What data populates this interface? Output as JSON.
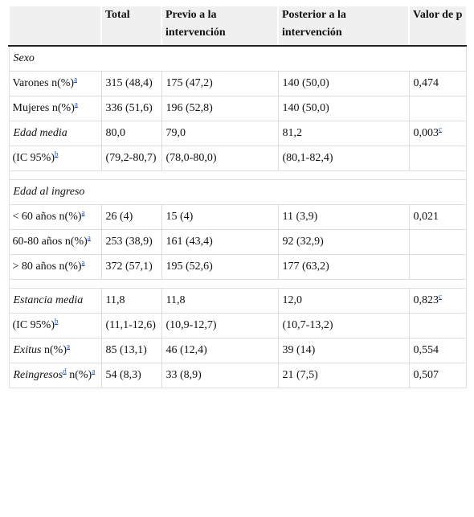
{
  "table": {
    "header": [
      "Total",
      "Previo a la intervención",
      "Posterior a la intervención",
      "Valor de p"
    ],
    "blocks": [
      {
        "title": "Sexo",
        "rows": [
          {
            "label": [
              {
                "text": "Varones n(%)"
              },
              {
                "sup": "a"
              }
            ],
            "values": [
              "315 (48,4)",
              "175 (47,2)",
              "140 (50,0)",
              "0,474"
            ]
          },
          {
            "label": [
              {
                "text": "Mujeres n(%)"
              },
              {
                "sup": "a"
              }
            ],
            "values": [
              "336 (51,6)",
              "196 (52,8)",
              "140 (50,0)"
            ]
          },
          {
            "label": [
              {
                "italic": "Edad media"
              }
            ],
            "values": [
              "80,0",
              "79,0",
              "81,2",
              "0,003"
            ],
            "p_sup": "c"
          },
          {
            "label": [
              {
                "text": "(IC 95%)"
              },
              {
                "sup": "b"
              }
            ],
            "values": [
              "(79,2-80,7)",
              "(78,0-80,0)",
              "(80,1-82,4)"
            ]
          }
        ]
      },
      {
        "title": "Edad al ingreso",
        "rows": [
          {
            "label": [
              {
                "text": "< 60 años n(%)"
              },
              {
                "sup": "a"
              }
            ],
            "values": [
              "26 (4)",
              "15 (4)",
              "11 (3,9)",
              "0,021"
            ]
          },
          {
            "label": [
              {
                "text": "60-80 años n(%)"
              },
              {
                "sup": "a"
              }
            ],
            "values": [
              "253 (38,9)",
              "161 (43,4)",
              "92 (32,9)"
            ]
          },
          {
            "label": [
              {
                "text": "> 80 años n(%)"
              },
              {
                "sup": "a"
              }
            ],
            "values": [
              "372 (57,1)",
              "195 (52,6)",
              "177 (63,2)"
            ]
          }
        ]
      },
      {
        "rows": [
          {
            "label": [
              {
                "italic": "Estancia media"
              }
            ],
            "values": [
              "11,8",
              "11,8",
              "12,0",
              "0,823"
            ],
            "p_sup": "c"
          },
          {
            "label": [
              {
                "text": "(IC 95%)"
              },
              {
                "sup": "b"
              }
            ],
            "values": [
              "(11,1-12,6)",
              "(10,9-12,7)",
              "(10,7-13,2)"
            ]
          },
          {
            "label": [
              {
                "italic": "Exitus"
              },
              {
                "text": " n(%)"
              },
              {
                "sup": "a"
              }
            ],
            "values": [
              "85 (13,1)",
              "46 (12,4)",
              "39 (14)",
              "0,554"
            ]
          },
          {
            "label": [
              {
                "italic": "Reingresos"
              },
              {
                "sup": "d"
              },
              {
                "text": " n(%)"
              },
              {
                "sup": "a"
              }
            ],
            "values": [
              "54 (8,3)",
              "33 (8,9)",
              "21 (7,5)",
              "0,507"
            ]
          }
        ]
      }
    ]
  }
}
